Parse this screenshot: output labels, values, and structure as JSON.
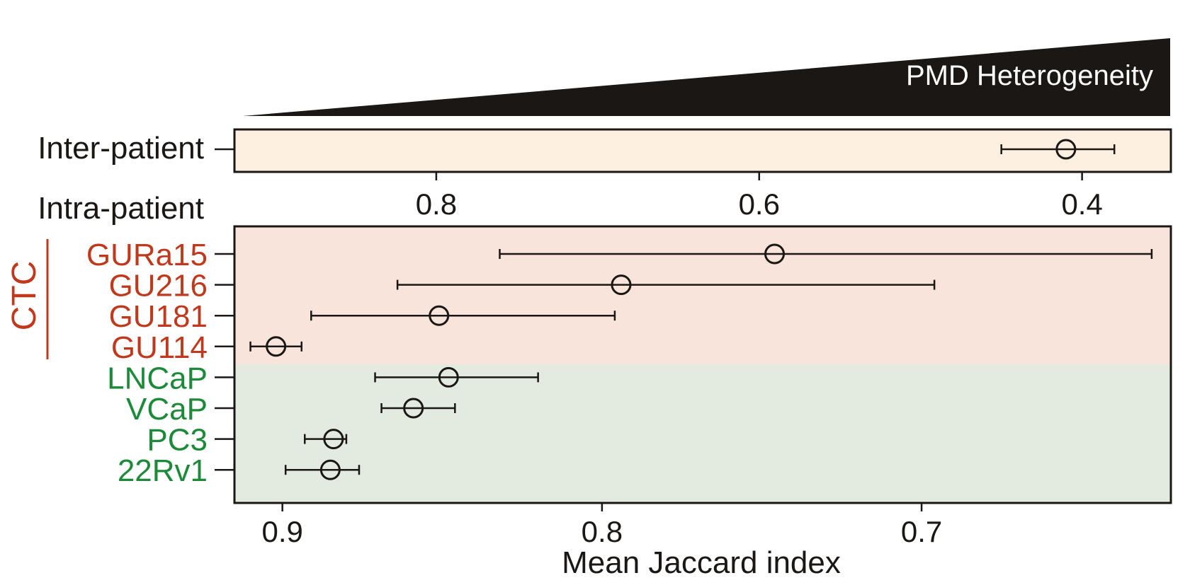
{
  "heterogeneity_label": "PMD Heterogeneity",
  "colors": {
    "ink": "#1a1714",
    "ctc": "#c0391c",
    "cell_line": "#1d8a3a",
    "inter_bg": "#fdf0e0",
    "ctc_bg": "#f8e4da",
    "cell_line_bg": "#e3ebe1"
  },
  "chart_data": [
    {
      "type": "scatter",
      "panel": "inter",
      "row_label": "Inter-patient",
      "axis": {
        "ticks": [
          0.8,
          0.6,
          0.4
        ],
        "tick_labels": [
          "0.8",
          "0.6",
          "0.4"
        ],
        "xlim": [
          0.925,
          0.345
        ],
        "reversed": true
      },
      "points": [
        {
          "mean": 0.41,
          "low": 0.38,
          "high": 0.45
        }
      ]
    },
    {
      "type": "scatter",
      "panel": "intra",
      "row_label": "Intra-patient",
      "group_label": "CTC",
      "xlabel": "Mean Jaccard index",
      "axis": {
        "ticks": [
          0.9,
          0.8,
          0.7
        ],
        "tick_labels": [
          "0.9",
          "0.8",
          "0.7"
        ],
        "xlim": [
          0.915,
          0.622
        ],
        "reversed": true
      },
      "points": [
        {
          "label": "GURa15",
          "group": "ctc",
          "mean": 0.746,
          "low": 0.628,
          "high": 0.832
        },
        {
          "label": "GU216",
          "group": "ctc",
          "mean": 0.794,
          "low": 0.696,
          "high": 0.864
        },
        {
          "label": "GU181",
          "group": "ctc",
          "mean": 0.851,
          "low": 0.796,
          "high": 0.891
        },
        {
          "label": "GU114",
          "group": "ctc",
          "mean": 0.902,
          "low": 0.894,
          "high": 0.91
        },
        {
          "label": "LNCaP",
          "group": "cell_line",
          "mean": 0.848,
          "low": 0.82,
          "high": 0.871
        },
        {
          "label": "VCaP",
          "group": "cell_line",
          "mean": 0.859,
          "low": 0.846,
          "high": 0.869
        },
        {
          "label": "PC3",
          "group": "cell_line",
          "mean": 0.884,
          "low": 0.88,
          "high": 0.893
        },
        {
          "label": "22Rv1",
          "group": "cell_line",
          "mean": 0.885,
          "low": 0.876,
          "high": 0.899
        }
      ]
    }
  ]
}
